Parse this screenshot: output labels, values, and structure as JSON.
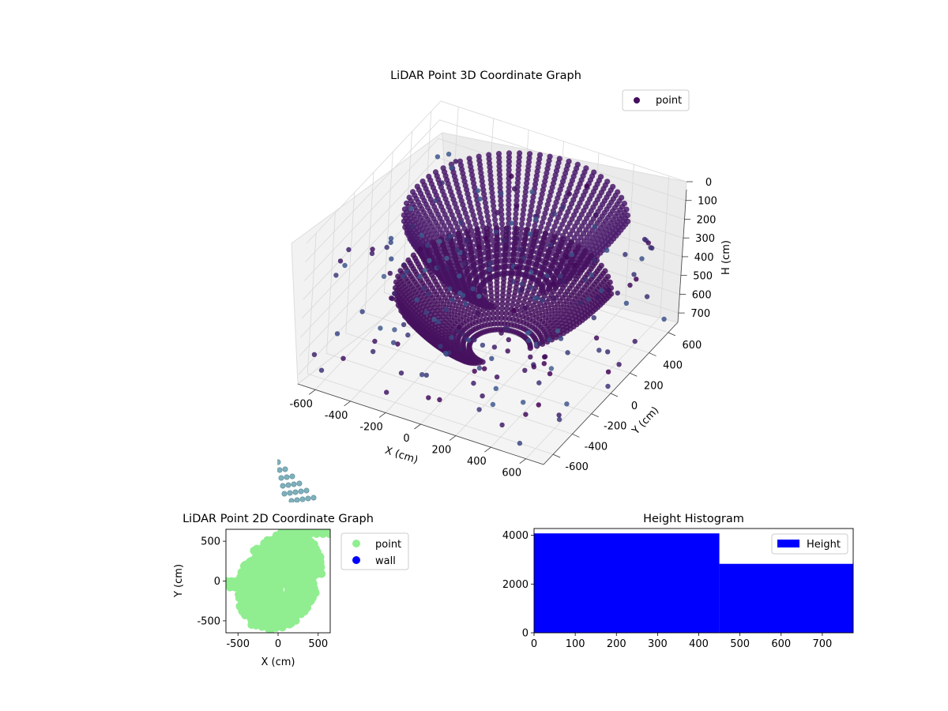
{
  "figure": {
    "chart_3d_title": "LiDAR Point 3D Coordinate Graph",
    "chart_2d_title": "LiDAR Point 2D Coordinate Graph",
    "histogram_title": "Height Histogram"
  },
  "chart_data": [
    {
      "type": "scatter",
      "projection": "3d",
      "title": "LiDAR Point 3D Coordinate Graph",
      "xlabel": "X (cm)",
      "ylabel": "Y (cm)",
      "zlabel": "H (cm)",
      "xlim": [
        -700,
        700
      ],
      "ylim": [
        -700,
        700
      ],
      "zlim": [
        750,
        0
      ],
      "z_axis_inverted": true,
      "x_ticks": [
        "-600",
        "-400",
        "-200",
        "0",
        "200",
        "400",
        "600"
      ],
      "y_ticks": [
        "-600",
        "-400",
        "-200",
        "0",
        "200",
        "400",
        "600"
      ],
      "z_ticks": [
        "0",
        "100",
        "200",
        "300",
        "400",
        "500",
        "600",
        "700"
      ],
      "legend": [
        "point"
      ],
      "legend_loc": "upper right",
      "grid": true,
      "colormap": "viridis",
      "series": [
        {
          "name": "point",
          "description": "dense dome-shaped scan shells plus scattered sparse points; floor-level points extend beyond axes"
        }
      ]
    },
    {
      "type": "scatter",
      "title": "LiDAR Point 2D Coordinate Graph",
      "xlabel": "X (cm)",
      "ylabel": "Y (cm)",
      "xlim": [
        -650,
        650
      ],
      "ylim": [
        -650,
        650
      ],
      "x_ticks": [
        "-500",
        "0",
        "500"
      ],
      "y_ticks": [
        "-500",
        "0",
        "500"
      ],
      "legend": [
        "point",
        "wall"
      ],
      "legend_loc": "outside upper right",
      "series": [
        {
          "name": "point",
          "color": "#90ee90"
        },
        {
          "name": "wall",
          "color": "#0000ff"
        }
      ]
    },
    {
      "type": "bar",
      "title": "Height Histogram",
      "bins": [
        [
          0,
          450
        ],
        [
          450,
          775
        ]
      ],
      "values": [
        4080,
        2830
      ],
      "xlim": [
        0,
        775
      ],
      "ylim": [
        0,
        4280
      ],
      "x_ticks": [
        "0",
        "100",
        "200",
        "300",
        "400",
        "500",
        "600",
        "700"
      ],
      "y_ticks": [
        "0",
        "2000",
        "4000"
      ],
      "legend": [
        "Height"
      ],
      "legend_loc": "upper right",
      "color": "#0000ff"
    }
  ]
}
